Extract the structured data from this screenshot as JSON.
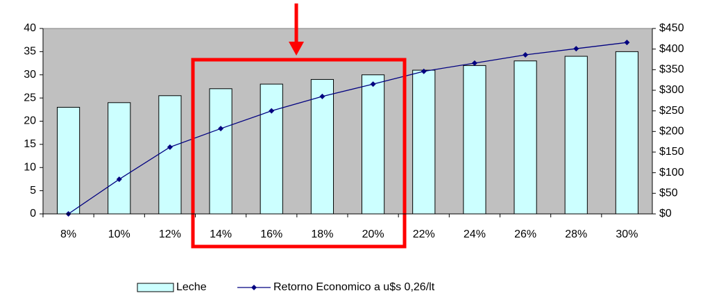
{
  "chart_data": {
    "type": "bar-line",
    "categories": [
      "8%",
      "10%",
      "12%",
      "14%",
      "16%",
      "18%",
      "20%",
      "22%",
      "24%",
      "26%",
      "28%",
      "30%"
    ],
    "series": [
      {
        "name": "Leche",
        "type": "bar",
        "color": "#ccffff",
        "values": [
          23,
          24,
          25.5,
          27,
          28,
          29,
          30,
          31,
          32,
          33,
          34,
          35
        ]
      },
      {
        "name": "Retorno Economico a u$s 0,26/lt",
        "type": "line",
        "axis": "y2",
        "color": "#000080",
        "values": [
          0,
          84,
          162,
          207,
          250,
          285,
          315,
          346,
          366,
          386,
          401,
          416
        ]
      }
    ],
    "ylim": [
      0,
      40
    ],
    "yticks": [
      0,
      5,
      10,
      15,
      20,
      25,
      30,
      35,
      40
    ],
    "y2lim": [
      0,
      450
    ],
    "y2ticks": [
      {
        "value": 0,
        "label": "$0"
      },
      {
        "value": 50,
        "label": "$50"
      },
      {
        "value": 100,
        "label": "$100"
      },
      {
        "value": 150,
        "label": "$150"
      },
      {
        "value": 200,
        "label": "$200"
      },
      {
        "value": 250,
        "label": "$250"
      },
      {
        "value": 300,
        "label": "$300"
      },
      {
        "value": 350,
        "label": "$350"
      },
      {
        "value": 400,
        "label": "$400"
      },
      {
        "value": 450,
        "label": "$450"
      }
    ],
    "plot_background": "#c0c0c0"
  }
}
